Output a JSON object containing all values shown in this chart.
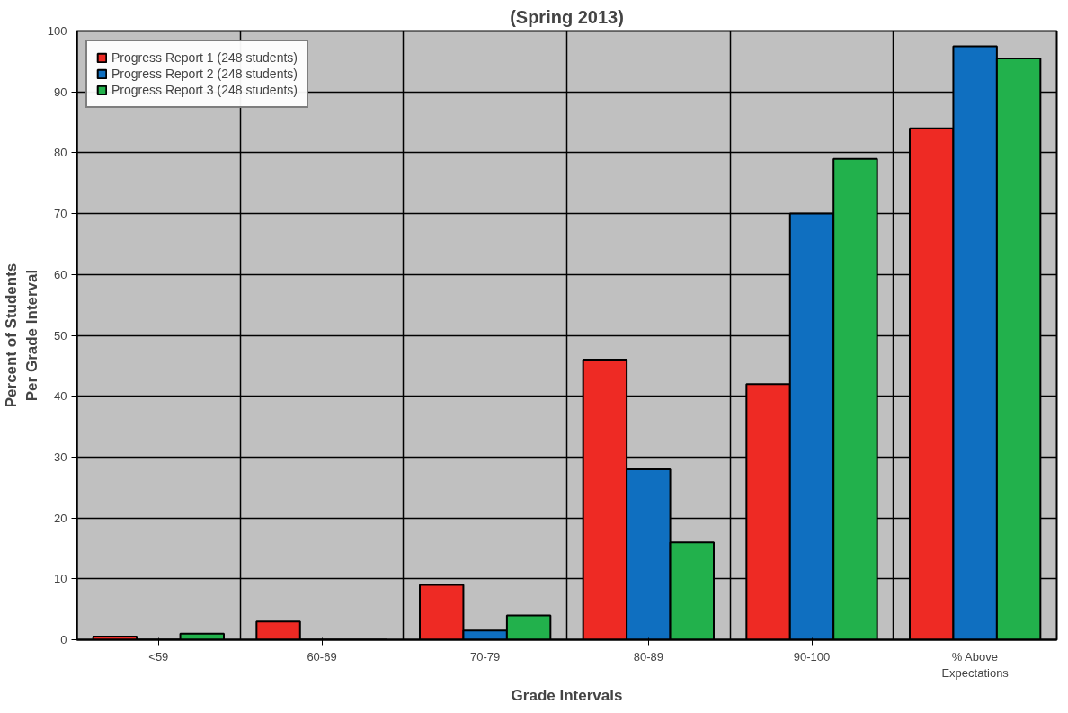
{
  "chart_data": {
    "type": "bar",
    "title": "(Spring 2013)",
    "xlabel": "Grade Intervals",
    "ylabel": "Percent of Students\nPer Grade Interval",
    "categories": [
      "<59",
      "60-69",
      "70-79",
      "80-89",
      "90-100",
      "% Above\nExpectations"
    ],
    "series": [
      {
        "name": "Progress Report 1 (248 students)",
        "color": "#ee2a24",
        "values": [
          0.5,
          3,
          9,
          46,
          42,
          84
        ]
      },
      {
        "name": "Progress Report 2 (248 students)",
        "color": "#0f6fc0",
        "values": [
          0,
          0,
          1.5,
          28,
          70,
          97.5
        ]
      },
      {
        "name": "Progress Report 3 (248 students)",
        "color": "#22b14c",
        "values": [
          1,
          0,
          4,
          16,
          79,
          95.5
        ]
      }
    ],
    "ylim": [
      0,
      100
    ],
    "yticks": [
      0,
      10,
      20,
      30,
      40,
      50,
      60,
      70,
      80,
      90,
      100
    ],
    "grid": true,
    "legend": "top left"
  }
}
